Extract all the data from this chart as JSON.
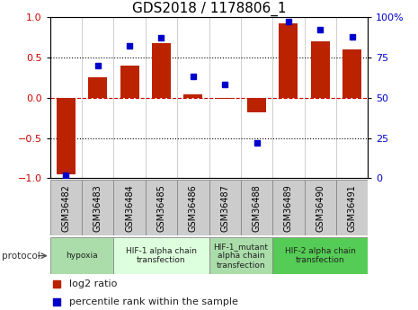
{
  "title": "GDS2018 / 1178806_1",
  "samples": [
    "GSM36482",
    "GSM36483",
    "GSM36484",
    "GSM36485",
    "GSM36486",
    "GSM36487",
    "GSM36488",
    "GSM36489",
    "GSM36490",
    "GSM36491"
  ],
  "log2_ratio": [
    -0.95,
    0.25,
    0.4,
    0.68,
    0.04,
    -0.02,
    -0.18,
    0.92,
    0.7,
    0.6
  ],
  "percentile": [
    2,
    70,
    82,
    87,
    63,
    58,
    22,
    97,
    92,
    88
  ],
  "bar_color": "#bb2200",
  "dot_color": "#0000cc",
  "ylim": [
    -1,
    1
  ],
  "y2lim": [
    0,
    100
  ],
  "yticks_left": [
    -1,
    -0.5,
    0,
    0.5,
    1
  ],
  "y2ticks": [
    0,
    25,
    50,
    75,
    100
  ],
  "hlines": [
    0.5,
    -0.5
  ],
  "hline_zero_color": "#cc0000",
  "hline_dot_color": "#000000",
  "sample_box_color": "#cccccc",
  "protocols": [
    {
      "label": "hypoxia",
      "start": 0,
      "end": 2,
      "color": "#aaddaa"
    },
    {
      "label": "HIF-1 alpha chain\ntransfection",
      "start": 2,
      "end": 5,
      "color": "#ddffdd"
    },
    {
      "label": "HIF-1_mutant\nalpha chain\ntransfection",
      "start": 5,
      "end": 7,
      "color": "#aaddaa"
    },
    {
      "label": "HIF-2 alpha chain\ntransfection",
      "start": 7,
      "end": 10,
      "color": "#55cc55"
    }
  ],
  "legend_items": [
    {
      "label": "log2 ratio",
      "color": "#bb2200"
    },
    {
      "label": "percentile rank within the sample",
      "color": "#0000cc"
    }
  ],
  "protocol_label": "protocol",
  "background_color": "#ffffff",
  "bar_width": 0.6
}
